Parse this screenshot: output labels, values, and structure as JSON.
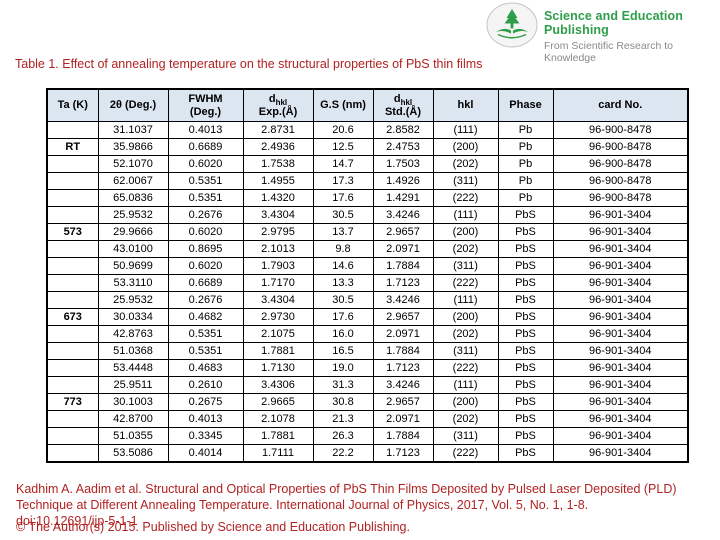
{
  "logo": {
    "name": "Science and Education Publishing",
    "tagline": "From Scientific Research to Knowledge",
    "colors": {
      "brand_green": "#2e9e4b",
      "tagline_gray": "#8a8a8a"
    }
  },
  "title": "Table 1. Effect of annealing temperature on the structural properties of PbS thin films",
  "accent_color": "#b22222",
  "table": {
    "header_fill": "#dce6f1",
    "header": {
      "ta": "Ta (K)",
      "two_theta": "2θ (Deg.)",
      "fwhm_line1": "FWHM",
      "fwhm_line2": "(Deg.)",
      "d_exp_base": "d",
      "d_exp_sub": "hkl",
      "d_exp_line2": "Exp.(Å)",
      "gs": "G.S (nm)",
      "d_std_base": "d",
      "d_std_sub": "hkl",
      "d_std_line2": "Std.(Å)",
      "hkl": "hkl",
      "phase": "Phase",
      "card": "card No."
    },
    "rows": [
      {
        "ta": "",
        "two_theta": "31.1037",
        "fwhm": "0.4013",
        "d_exp": "2.8731",
        "gs": "20.6",
        "d_std": "2.8582",
        "hkl": "(111)",
        "phase": "Pb",
        "card": "96-900-8478"
      },
      {
        "ta": "RT",
        "two_theta": "35.9866",
        "fwhm": "0.6689",
        "d_exp": "2.4936",
        "gs": "12.5",
        "d_std": "2.4753",
        "hkl": "(200)",
        "phase": "Pb",
        "card": "96-900-8478"
      },
      {
        "ta": "",
        "two_theta": "52.1070",
        "fwhm": "0.6020",
        "d_exp": "1.7538",
        "gs": "14.7",
        "d_std": "1.7503",
        "hkl": "(202)",
        "phase": "Pb",
        "card": "96-900-8478"
      },
      {
        "ta": "",
        "two_theta": "62.0067",
        "fwhm": "0.5351",
        "d_exp": "1.4955",
        "gs": "17.3",
        "d_std": "1.4926",
        "hkl": "(311)",
        "phase": "Pb",
        "card": "96-900-8478"
      },
      {
        "ta": "",
        "two_theta": "65.0836",
        "fwhm": "0.5351",
        "d_exp": "1.4320",
        "gs": "17.6",
        "d_std": "1.4291",
        "hkl": "(222)",
        "phase": "Pb",
        "card": "96-900-8478"
      },
      {
        "ta": "",
        "two_theta": "25.9532",
        "fwhm": "0.2676",
        "d_exp": "3.4304",
        "gs": "30.5",
        "d_std": "3.4246",
        "hkl": "(111)",
        "phase": "PbS",
        "card": "96-901-3404"
      },
      {
        "ta": "573",
        "two_theta": "29.9666",
        "fwhm": "0.6020",
        "d_exp": "2.9795",
        "gs": "13.7",
        "d_std": "2.9657",
        "hkl": "(200)",
        "phase": "PbS",
        "card": "96-901-3404"
      },
      {
        "ta": "",
        "two_theta": "43.0100",
        "fwhm": "0.8695",
        "d_exp": "2.1013",
        "gs": "9.8",
        "d_std": "2.0971",
        "hkl": "(202)",
        "phase": "PbS",
        "card": "96-901-3404"
      },
      {
        "ta": "",
        "two_theta": "50.9699",
        "fwhm": "0.6020",
        "d_exp": "1.7903",
        "gs": "14.6",
        "d_std": "1.7884",
        "hkl": "(311)",
        "phase": "PbS",
        "card": "96-901-3404"
      },
      {
        "ta": "",
        "two_theta": "53.3110",
        "fwhm": "0.6689",
        "d_exp": "1.7170",
        "gs": "13.3",
        "d_std": "1.7123",
        "hkl": "(222)",
        "phase": "PbS",
        "card": "96-901-3404"
      },
      {
        "ta": "",
        "two_theta": "25.9532",
        "fwhm": "0.2676",
        "d_exp": "3.4304",
        "gs": "30.5",
        "d_std": "3.4246",
        "hkl": "(111)",
        "phase": "PbS",
        "card": "96-901-3404"
      },
      {
        "ta": "673",
        "two_theta": "30.0334",
        "fwhm": "0.4682",
        "d_exp": "2.9730",
        "gs": "17.6",
        "d_std": "2.9657",
        "hkl": "(200)",
        "phase": "PbS",
        "card": "96-901-3404"
      },
      {
        "ta": "",
        "two_theta": "42.8763",
        "fwhm": "0.5351",
        "d_exp": "2.1075",
        "gs": "16.0",
        "d_std": "2.0971",
        "hkl": "(202)",
        "phase": "PbS",
        "card": "96-901-3404"
      },
      {
        "ta": "",
        "two_theta": "51.0368",
        "fwhm": "0.5351",
        "d_exp": "1.7881",
        "gs": "16.5",
        "d_std": "1.7884",
        "hkl": "(311)",
        "phase": "PbS",
        "card": "96-901-3404"
      },
      {
        "ta": "",
        "two_theta": "53.4448",
        "fwhm": "0.4683",
        "d_exp": "1.7130",
        "gs": "19.0",
        "d_std": "1.7123",
        "hkl": "(222)",
        "phase": "PbS",
        "card": "96-901-3404"
      },
      {
        "ta": "",
        "two_theta": "25.9511",
        "fwhm": "0.2610",
        "d_exp": "3.4306",
        "gs": "31.3",
        "d_std": "3.4246",
        "hkl": "(111)",
        "phase": "PbS",
        "card": "96-901-3404"
      },
      {
        "ta": "773",
        "two_theta": "30.1003",
        "fwhm": "0.2675",
        "d_exp": "2.9665",
        "gs": "30.8",
        "d_std": "2.9657",
        "hkl": "(200)",
        "phase": "PbS",
        "card": "96-901-3404"
      },
      {
        "ta": "",
        "two_theta": "42.8700",
        "fwhm": "0.4013",
        "d_exp": "2.1078",
        "gs": "21.3",
        "d_std": "2.0971",
        "hkl": "(202)",
        "phase": "PbS",
        "card": "96-901-3404"
      },
      {
        "ta": "",
        "two_theta": "51.0355",
        "fwhm": "0.3345",
        "d_exp": "1.7881",
        "gs": "26.3",
        "d_std": "1.7884",
        "hkl": "(311)",
        "phase": "PbS",
        "card": "96-901-3404"
      },
      {
        "ta": "",
        "two_theta": "53.5086",
        "fwhm": "0.4014",
        "d_exp": "1.7111",
        "gs": "22.2",
        "d_std": "1.7123",
        "hkl": "(222)",
        "phase": "PbS",
        "card": "96-901-3404"
      }
    ]
  },
  "footer": {
    "line1": "Kadhim A. Aadim et al. Structural and Optical Properties of PbS Thin Films Deposited by Pulsed Laser Deposited (PLD)",
    "line2": "Technique at Different Annealing Temperature. International Journal of Physics, 2017, Vol. 5, No. 1, 1-8.",
    "doi": "doi:10.12691/ijp-5-1-1",
    "copyright": "© The Author(s) 2015. Published by Science and Education Publishing."
  }
}
